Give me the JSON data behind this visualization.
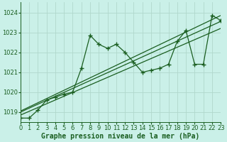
{
  "title": "Graphe pression niveau de la mer (hPa)",
  "bg_color": "#caf0e8",
  "grid_color": "#b0d8cc",
  "line_color": "#1a5e20",
  "x_min": 0,
  "x_max": 23,
  "y_min": 1018.5,
  "y_max": 1024.5,
  "y_ticks": [
    1019,
    1020,
    1021,
    1022,
    1023,
    1024
  ],
  "x_ticks": [
    0,
    1,
    2,
    3,
    4,
    5,
    6,
    7,
    8,
    9,
    10,
    11,
    12,
    13,
    14,
    15,
    16,
    17,
    18,
    19,
    20,
    21,
    22,
    23
  ],
  "main_x": [
    0,
    1,
    2,
    3,
    4,
    5,
    6,
    7,
    8,
    9,
    10,
    11,
    12,
    13,
    14,
    15,
    16,
    17,
    18,
    19,
    20,
    21,
    22,
    23
  ],
  "main_y": [
    1018.7,
    1018.7,
    1019.1,
    1019.6,
    1019.75,
    1019.9,
    1020.0,
    1021.2,
    1022.85,
    1022.4,
    1022.2,
    1022.4,
    1022.0,
    1021.5,
    1021.0,
    1021.1,
    1021.2,
    1021.4,
    1022.55,
    1023.1,
    1021.4,
    1021.4,
    1023.85,
    1023.6
  ],
  "trend1_x": [
    0,
    23
  ],
  "trend1_y": [
    1019.05,
    1023.85
  ],
  "trend2_x": [
    0,
    23
  ],
  "trend2_y": [
    1019.0,
    1023.55
  ],
  "trend3_x": [
    0,
    23
  ],
  "trend3_y": [
    1018.85,
    1023.2
  ],
  "font_size": 7,
  "tick_font_size": 6
}
